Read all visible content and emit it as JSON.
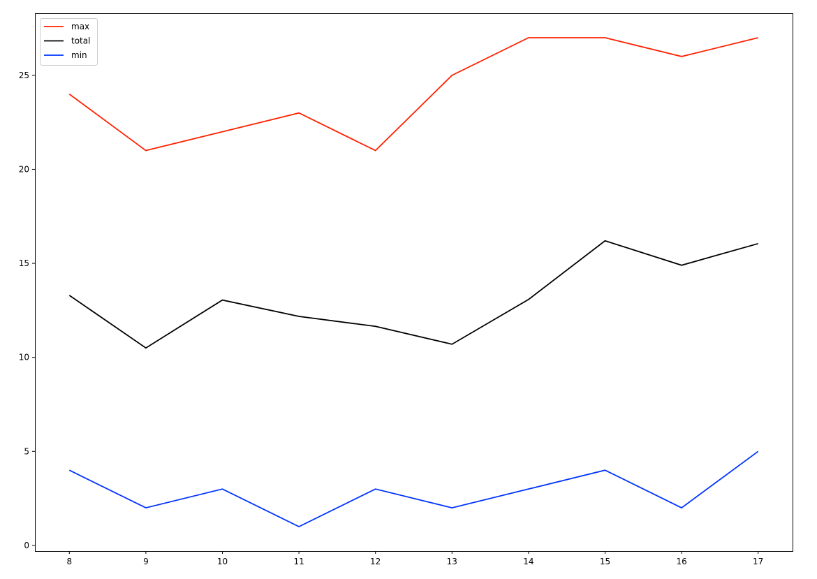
{
  "chart_data": {
    "type": "line",
    "title": "",
    "xlabel": "",
    "ylabel": "",
    "x": [
      8,
      9,
      10,
      11,
      12,
      13,
      14,
      15,
      16,
      17
    ],
    "xlim": [
      7.55,
      17.45
    ],
    "ylim": [
      -0.3,
      28.3
    ],
    "xticks": [
      8,
      9,
      10,
      11,
      12,
      13,
      14,
      15,
      16,
      17
    ],
    "yticks": [
      0,
      5,
      10,
      15,
      20,
      25
    ],
    "grid": false,
    "legend_position": "top-left",
    "series": [
      {
        "name": "max",
        "color": "#ff2200",
        "values": [
          24,
          21,
          22,
          23,
          21,
          25,
          27,
          27,
          26,
          27
        ]
      },
      {
        "name": "total",
        "color": "#000000",
        "values": [
          13.3,
          10.5,
          13.05,
          12.18,
          11.65,
          10.7,
          13.08,
          16.2,
          14.9,
          16.05
        ]
      },
      {
        "name": "min",
        "color": "#0033ff",
        "values": [
          4,
          2,
          3,
          1,
          3,
          2,
          3,
          4,
          2,
          5
        ]
      }
    ]
  }
}
